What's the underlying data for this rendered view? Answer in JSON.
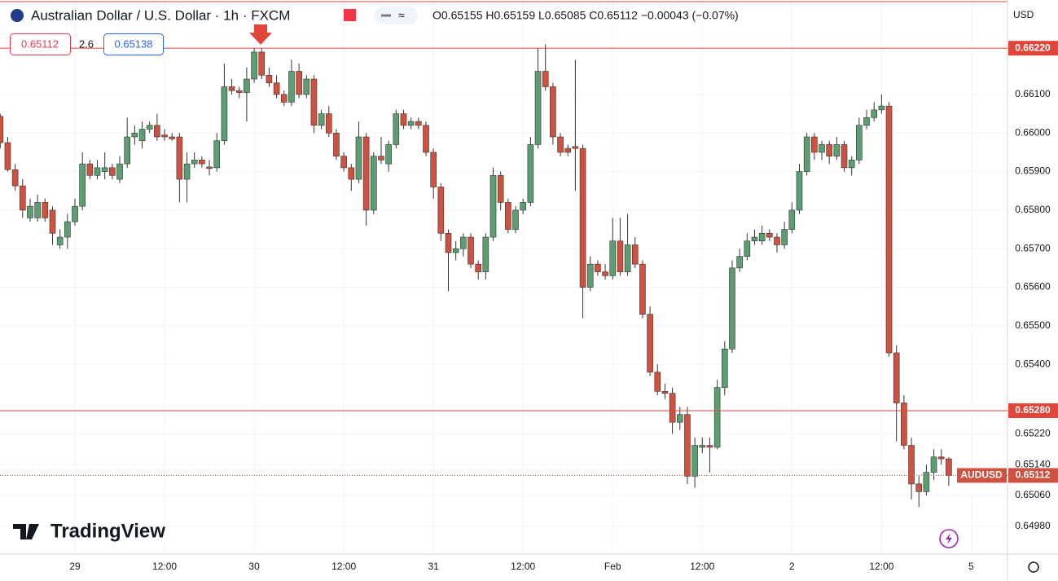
{
  "header": {
    "title": "Australian Dollar / U.S. Dollar · 1h · FXCM",
    "ohlc": "O0.65155  H0.65159  L0.65085  C0.65112  −0.00043 (−0.07%)",
    "sell": "0.65112",
    "spread": "2.6",
    "buy": "0.65138",
    "currency": "USD",
    "logo": "TradingView"
  },
  "chart_data": {
    "type": "candlestick",
    "up_color": "#5b9e72",
    "down_color": "#cf5240",
    "ylim": [
      0.64908,
      0.66345
    ],
    "yticks": [
      {
        "value": 0.661,
        "label": "0.66100"
      },
      {
        "value": 0.66,
        "label": "0.66000"
      },
      {
        "value": 0.659,
        "label": "0.65900"
      },
      {
        "value": 0.658,
        "label": "0.65800"
      },
      {
        "value": 0.657,
        "label": "0.65700"
      },
      {
        "value": 0.656,
        "label": "0.65600"
      },
      {
        "value": 0.655,
        "label": "0.65500"
      },
      {
        "value": 0.654,
        "label": "0.65400"
      },
      {
        "value": 0.6522,
        "label": "0.65220"
      },
      {
        "value": 0.6514,
        "label": "0.65140"
      },
      {
        "value": 0.6506,
        "label": "0.65060"
      },
      {
        "value": 0.6498,
        "label": "0.64980"
      }
    ],
    "xticks": [
      {
        "value": 10,
        "label": "29"
      },
      {
        "value": 22,
        "label": "12:00"
      },
      {
        "value": 34,
        "label": "30"
      },
      {
        "value": 46,
        "label": "12:00"
      },
      {
        "value": 58,
        "label": "31"
      },
      {
        "value": 70,
        "label": "12:00"
      },
      {
        "value": 82,
        "label": "Feb"
      },
      {
        "value": 94,
        "label": "12:00"
      },
      {
        "value": 106,
        "label": "2"
      },
      {
        "value": 118,
        "label": "12:00"
      },
      {
        "value": 130,
        "label": "5"
      }
    ],
    "grid": true,
    "hlines": [
      {
        "value": 0.6622,
        "label": "0.66220"
      },
      {
        "value": 0.6528,
        "label": "0.65280"
      }
    ],
    "price_line": {
      "name": "AUDUSD",
      "value": 0.65112,
      "label": "0.65112"
    },
    "open": [
      0.66043,
      0.65975,
      0.65905,
      0.65863,
      0.6578,
      0.6578,
      0.6582,
      0.658,
      0.6571,
      0.6573,
      0.6577,
      0.6581,
      0.6592,
      0.6589,
      0.659,
      0.6591,
      0.6588,
      0.6592,
      0.6599,
      0.6598,
      0.6601,
      0.6602,
      0.65995,
      0.6599,
      0.6599,
      0.6588,
      0.6592,
      0.6593,
      0.65912,
      0.6591,
      0.6598,
      0.6612,
      0.6611,
      0.66105,
      0.6614,
      0.6621,
      0.6615,
      0.6613,
      0.661,
      0.6608,
      0.6616,
      0.661,
      0.6614,
      0.6602,
      0.6605,
      0.66,
      0.6594,
      0.6591,
      0.6588,
      0.6599,
      0.658,
      0.6594,
      0.6592,
      0.6597,
      0.6605,
      0.6602,
      0.6603,
      0.6602,
      0.6595,
      0.6586,
      0.6574,
      0.6569,
      0.657,
      0.6573,
      0.6566,
      0.6564,
      0.6573,
      0.6589,
      0.6582,
      0.6575,
      0.658,
      0.6582,
      0.6597,
      0.6616,
      0.6612,
      0.6599,
      0.6596,
      0.65965,
      0.6596,
      0.656,
      0.6566,
      0.6564,
      0.6563,
      0.6572,
      0.6564,
      0.6571,
      0.6566,
      0.6553,
      0.6538,
      0.6533,
      0.65325,
      0.6525,
      0.6527,
      0.6511,
      0.65185,
      0.6519,
      0.65185,
      0.6534,
      0.6544,
      0.6565,
      0.6568,
      0.6572,
      0.6572,
      0.6574,
      0.6573,
      0.6571,
      0.6575,
      0.658,
      0.659,
      0.6599,
      0.6595,
      0.6597,
      0.6594,
      0.6597,
      0.6591,
      0.6593,
      0.6602,
      0.6604,
      0.6606,
      0.6607,
      0.6543,
      0.653,
      0.6519,
      0.6509,
      0.6507,
      0.6512,
      0.6516,
      0.65155
    ],
    "high": [
      0.6605,
      0.6599,
      0.6592,
      0.6588,
      0.6583,
      0.6584,
      0.6583,
      0.6581,
      0.6575,
      0.6579,
      0.6583,
      0.6595,
      0.6593,
      0.6593,
      0.6595,
      0.6592,
      0.6594,
      0.6604,
      0.6602,
      0.6603,
      0.6603,
      0.6605,
      0.6601,
      0.66,
      0.66,
      0.6595,
      0.6595,
      0.6594,
      0.6593,
      0.66,
      0.6618,
      0.6614,
      0.6612,
      0.6617,
      0.6622,
      0.6622,
      0.6617,
      0.6615,
      0.6611,
      0.6619,
      0.6618,
      0.6615,
      0.6615,
      0.6606,
      0.6607,
      0.6601,
      0.6595,
      0.6592,
      0.6603,
      0.66,
      0.6595,
      0.6599,
      0.6598,
      0.6606,
      0.6606,
      0.6604,
      0.6604,
      0.6603,
      0.6596,
      0.6587,
      0.6575,
      0.6572,
      0.6574,
      0.6574,
      0.6567,
      0.6574,
      0.6591,
      0.659,
      0.6583,
      0.6581,
      0.6583,
      0.6599,
      0.6622,
      0.6623,
      0.6613,
      0.66,
      0.6597,
      0.6619,
      0.6597,
      0.6568,
      0.6567,
      0.6566,
      0.6578,
      0.6578,
      0.6579,
      0.6573,
      0.6567,
      0.6555,
      0.654,
      0.6535,
      0.6534,
      0.6529,
      0.6529,
      0.6521,
      0.6521,
      0.6521,
      0.6536,
      0.6546,
      0.6567,
      0.657,
      0.6574,
      0.6575,
      0.6576,
      0.6575,
      0.6574,
      0.6577,
      0.6582,
      0.6592,
      0.66,
      0.66,
      0.6598,
      0.6598,
      0.6599,
      0.6598,
      0.6594,
      0.6604,
      0.6606,
      0.6608,
      0.661,
      0.6608,
      0.6545,
      0.6532,
      0.6521,
      0.6511,
      0.6514,
      0.6518,
      0.6518,
      0.65159
    ],
    "low": [
      0.6596,
      0.659,
      0.6585,
      0.6578,
      0.6577,
      0.6577,
      0.6577,
      0.6571,
      0.657,
      0.657,
      0.6576,
      0.658,
      0.6588,
      0.6588,
      0.6588,
      0.6588,
      0.6587,
      0.6591,
      0.6597,
      0.6596,
      0.66,
      0.6598,
      0.6598,
      0.6598,
      0.6582,
      0.6582,
      0.6591,
      0.6591,
      0.6589,
      0.659,
      0.6597,
      0.661,
      0.6609,
      0.6603,
      0.6613,
      0.6614,
      0.6612,
      0.6609,
      0.6607,
      0.6607,
      0.6609,
      0.6609,
      0.66,
      0.6601,
      0.6599,
      0.6593,
      0.659,
      0.6585,
      0.6587,
      0.6576,
      0.6579,
      0.6592,
      0.659,
      0.6596,
      0.6601,
      0.6601,
      0.6601,
      0.6594,
      0.6583,
      0.6572,
      0.6559,
      0.6567,
      0.6568,
      0.6565,
      0.6562,
      0.6562,
      0.6572,
      0.658,
      0.6574,
      0.6574,
      0.6579,
      0.6581,
      0.6596,
      0.6611,
      0.6597,
      0.6594,
      0.6594,
      0.6585,
      0.6552,
      0.6559,
      0.6563,
      0.6562,
      0.6562,
      0.6563,
      0.6563,
      0.6565,
      0.6552,
      0.6537,
      0.6532,
      0.6531,
      0.6522,
      0.6523,
      0.6509,
      0.6508,
      0.6517,
      0.6512,
      0.6518,
      0.6532,
      0.6543,
      0.6564,
      0.6567,
      0.6571,
      0.6571,
      0.6572,
      0.6569,
      0.657,
      0.6574,
      0.6579,
      0.6589,
      0.6593,
      0.6593,
      0.6592,
      0.6593,
      0.659,
      0.6589,
      0.6592,
      0.6601,
      0.6603,
      0.6605,
      0.6542,
      0.652,
      0.6518,
      0.6505,
      0.6503,
      0.6506,
      0.651,
      0.6514,
      0.65085
    ],
    "close": [
      0.65975,
      0.65905,
      0.65863,
      0.658,
      0.6581,
      0.6582,
      0.6578,
      0.6574,
      0.6573,
      0.6577,
      0.6581,
      0.6592,
      0.6589,
      0.6591,
      0.6591,
      0.6589,
      0.6592,
      0.6599,
      0.66,
      0.6601,
      0.6602,
      0.6599,
      0.6599,
      0.65985,
      0.6588,
      0.6592,
      0.6593,
      0.6592,
      0.65908,
      0.6598,
      0.6612,
      0.6611,
      0.66105,
      0.6614,
      0.6621,
      0.6615,
      0.6613,
      0.661,
      0.6608,
      0.6616,
      0.661,
      0.6614,
      0.6602,
      0.6605,
      0.66,
      0.6594,
      0.6591,
      0.6588,
      0.6599,
      0.658,
      0.6594,
      0.6593,
      0.6597,
      0.6605,
      0.6602,
      0.6603,
      0.6602,
      0.6595,
      0.6586,
      0.6574,
      0.6569,
      0.657,
      0.6573,
      0.6566,
      0.6564,
      0.6573,
      0.6589,
      0.6582,
      0.6575,
      0.658,
      0.6582,
      0.6597,
      0.6616,
      0.6612,
      0.6599,
      0.6595,
      0.6595,
      0.6596,
      0.656,
      0.6566,
      0.6564,
      0.6563,
      0.6572,
      0.6564,
      0.6571,
      0.6566,
      0.6553,
      0.6538,
      0.6533,
      0.65325,
      0.6525,
      0.6527,
      0.6511,
      0.6519,
      0.6519,
      0.65185,
      0.6534,
      0.6544,
      0.6565,
      0.6568,
      0.6572,
      0.6573,
      0.6574,
      0.6573,
      0.6571,
      0.6575,
      0.658,
      0.659,
      0.6599,
      0.6595,
      0.6597,
      0.6594,
      0.6597,
      0.6591,
      0.6593,
      0.6602,
      0.6604,
      0.6606,
      0.6607,
      0.6543,
      0.653,
      0.6519,
      0.6509,
      0.6507,
      0.6512,
      0.6516,
      0.65155,
      0.65112
    ]
  }
}
